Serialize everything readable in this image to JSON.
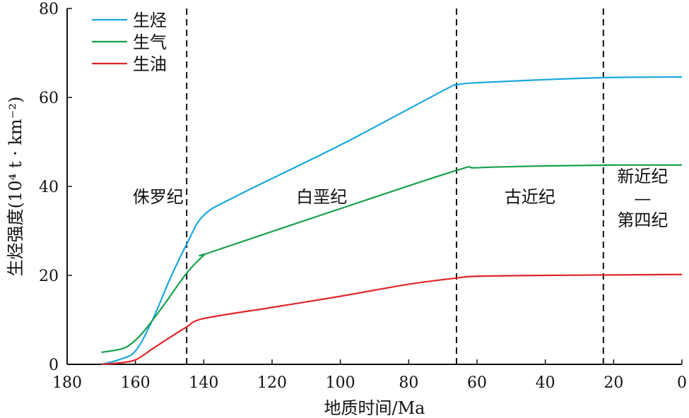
{
  "chart_data": {
    "type": "line",
    "xlabel": "地质时间/Ma",
    "ylabel": "生烃强度(10⁴ t · km⁻²)",
    "xlim": [
      180,
      0
    ],
    "ylim": [
      0,
      80
    ],
    "xticks": [
      "180",
      "160",
      "140",
      "120",
      "100",
      "80",
      "60",
      "40",
      "20",
      "0"
    ],
    "yticks": [
      "0",
      "20",
      "40",
      "60",
      "80"
    ],
    "legend_position": "top-left",
    "boundaries": [
      145,
      66,
      23
    ],
    "periods": [
      {
        "label": "侏罗纪",
        "lines": [
          "侏罗纪"
        ]
      },
      {
        "label": "白垩纪",
        "lines": [
          "白垩纪"
        ]
      },
      {
        "label": "古近纪",
        "lines": [
          "古近纪"
        ]
      },
      {
        "label": "新近纪—第四纪",
        "lines": [
          "新近纪",
          "—",
          "第四纪"
        ]
      }
    ],
    "series": [
      {
        "name": "生烃",
        "color": "#1aa7de",
        "points": [
          [
            170,
            0
          ],
          [
            165,
            1
          ],
          [
            160,
            3
          ],
          [
            155,
            10
          ],
          [
            150,
            19
          ],
          [
            145,
            27
          ],
          [
            140,
            33.5
          ],
          [
            130,
            38
          ],
          [
            100,
            49.3
          ],
          [
            70,
            61.5
          ],
          [
            66,
            62.8
          ],
          [
            60,
            63.3
          ],
          [
            40,
            64
          ],
          [
            20,
            64.5
          ],
          [
            0,
            64.6
          ]
        ]
      },
      {
        "name": "生气",
        "color": "#16a04a",
        "points": [
          [
            170,
            2.7
          ],
          [
            165,
            3.3
          ],
          [
            162,
            4.2
          ],
          [
            158,
            7
          ],
          [
            152,
            13
          ],
          [
            145,
            20.5
          ],
          [
            140,
            24.5
          ],
          [
            138,
            25.2
          ],
          [
            100,
            35
          ],
          [
            66,
            43.6
          ],
          [
            60,
            44.2
          ],
          [
            40,
            44.6
          ],
          [
            20,
            44.8
          ],
          [
            0,
            44.8
          ]
        ]
      },
      {
        "name": "生油",
        "color": "#e0262b",
        "points": [
          [
            170,
            0
          ],
          [
            165,
            0.3
          ],
          [
            160,
            1
          ],
          [
            155,
            3.5
          ],
          [
            150,
            6
          ],
          [
            145,
            8.4
          ],
          [
            140,
            10.3
          ],
          [
            120,
            12.8
          ],
          [
            100,
            15.3
          ],
          [
            80,
            18
          ],
          [
            66,
            19.4
          ],
          [
            60,
            19.8
          ],
          [
            40,
            20
          ],
          [
            20,
            20.1
          ],
          [
            0,
            20.2
          ]
        ]
      }
    ]
  }
}
